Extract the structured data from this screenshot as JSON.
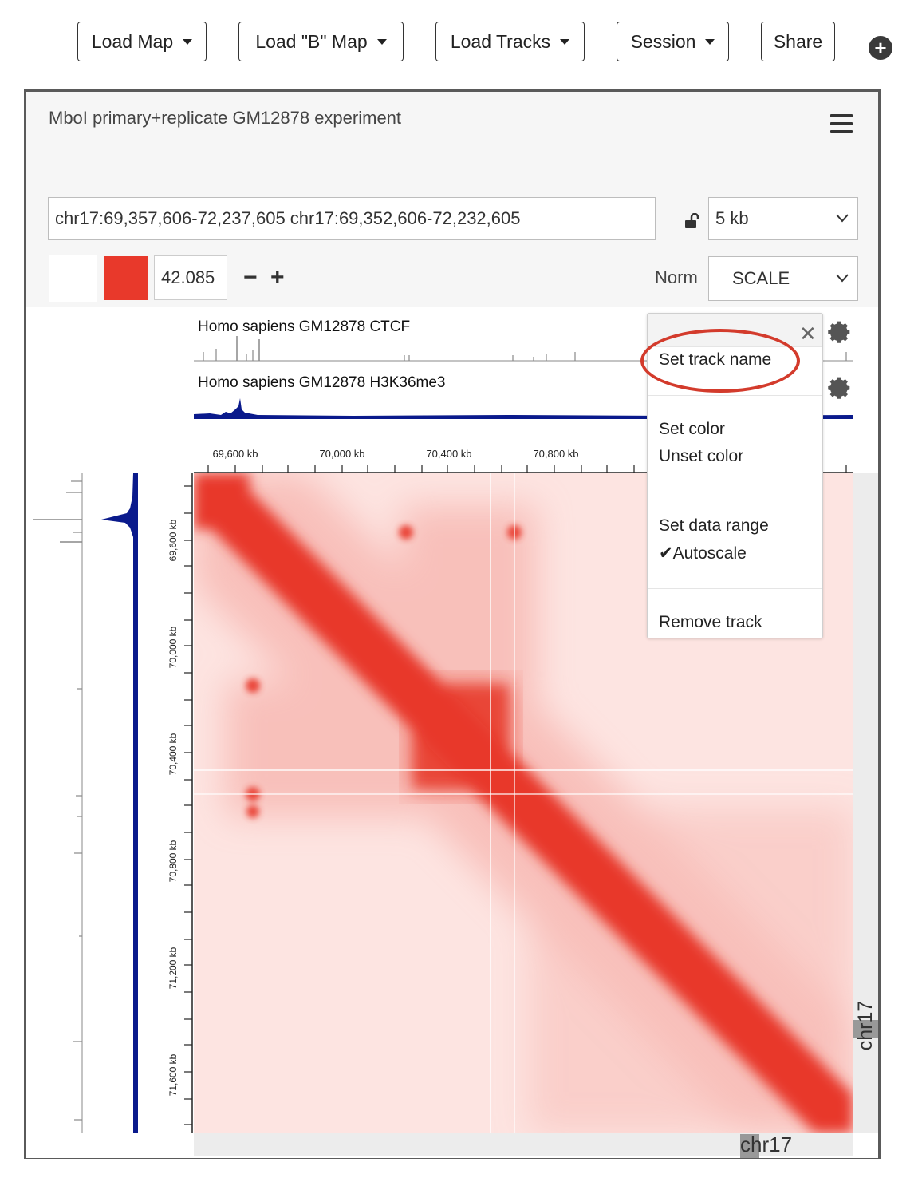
{
  "toolbar": {
    "load_map": "Load Map",
    "load_b_map": "Load \"B\" Map",
    "load_tracks": "Load Tracks",
    "session": "Session",
    "share": "Share"
  },
  "browser": {
    "title": "MboI primary+replicate GM12878 experiment",
    "locus": "chr17:69,357,606-72,237,605 chr17:69,352,606-72,232,605",
    "resolution": "5 kb",
    "color_range_max": "42.085",
    "norm_label": "Norm",
    "norm_value": "SCALE",
    "chromosome_x": "chr17",
    "chromosome_y": "chr17",
    "contact_color": "#e8392b"
  },
  "tracks": [
    {
      "name": "Homo sapiens GM12878 CTCF",
      "color": "#777777"
    },
    {
      "name": "Homo sapiens GM12878 H3K36me3",
      "color": "#0a1a8c"
    }
  ],
  "ruler": {
    "ticks": [
      "69,600 kb",
      "70,000 kb",
      "70,400 kb",
      "70,800 kb"
    ],
    "y_ticks": [
      "69,600 kb",
      "70,000 kb",
      "70,400 kb",
      "70,800 kb",
      "71,200 kb",
      "71,600 kb"
    ]
  },
  "track_menu": {
    "set_track_name": "Set track name",
    "set_color": "Set color",
    "unset_color": "Unset color",
    "set_data_range": "Set data range",
    "autoscale": "✔Autoscale",
    "remove_track": "Remove track"
  }
}
